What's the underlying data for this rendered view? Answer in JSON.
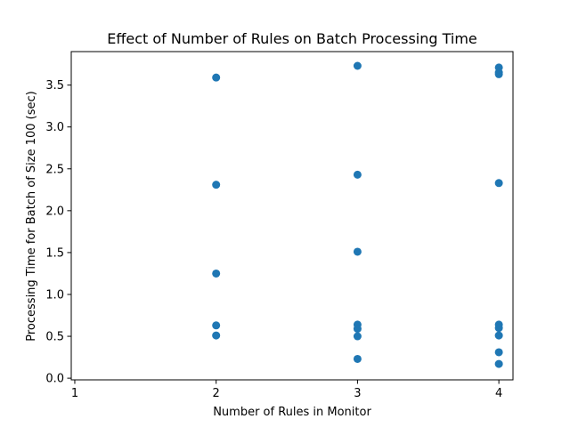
{
  "chart_data": {
    "type": "scatter",
    "title": "Effect of Number of Rules on Batch Processing Time",
    "xlabel": "Number of Rules in Monitor",
    "ylabel": "Processing Time for Batch of Size 100 (sec)",
    "xlim": [
      0.975,
      4.1
    ],
    "ylim": [
      -0.02,
      3.9
    ],
    "xticks": [
      1,
      2,
      3,
      4
    ],
    "xtick_labels": [
      "1",
      "2",
      "3",
      "4"
    ],
    "yticks": [
      0.0,
      0.5,
      1.0,
      1.5,
      2.0,
      2.5,
      3.0,
      3.5
    ],
    "ytick_labels": [
      "0.0",
      "0.5",
      "1.0",
      "1.5",
      "2.0",
      "2.5",
      "3.0",
      "3.5"
    ],
    "grid": false,
    "marker_color": "#1f77b4",
    "series": [
      {
        "x": [
          2,
          2,
          2,
          2,
          2,
          3,
          3,
          3,
          3,
          3,
          3,
          3,
          4,
          4,
          4,
          4,
          4,
          4,
          4,
          4,
          4
        ],
        "y": [
          3.59,
          2.31,
          1.25,
          0.63,
          0.51,
          3.73,
          2.43,
          1.51,
          0.64,
          0.59,
          0.5,
          0.23,
          3.71,
          3.65,
          2.33,
          0.64,
          0.6,
          0.51,
          0.31,
          0.17,
          3.63
        ]
      }
    ]
  }
}
